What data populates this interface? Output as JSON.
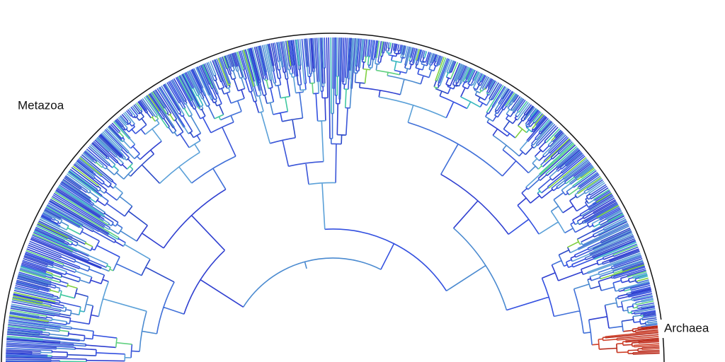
{
  "labels": {
    "metazoa": "Metazoa",
    "archaea": "Archaea"
  }
}
